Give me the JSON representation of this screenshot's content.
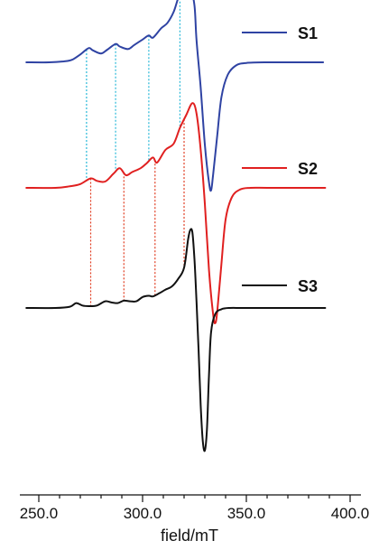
{
  "chart_data": {
    "type": "line",
    "title": "",
    "xlabel": "field/mT",
    "ylabel": "",
    "xlim": [
      240,
      400
    ],
    "x_ticks": [
      250,
      300,
      350,
      400
    ],
    "x_tick_labels": [
      "250.0",
      "300.0",
      "350.0",
      "400.0"
    ],
    "grid": false,
    "legend": "right, next to each trace",
    "series": [
      {
        "name": "S1",
        "color": "#2f43a3",
        "x": [
          244,
          255,
          262,
          266,
          270,
          274,
          276,
          280,
          283,
          287,
          289,
          293,
          296,
          300,
          303,
          305,
          309,
          312,
          315,
          317,
          319,
          321,
          323,
          325,
          326,
          328,
          330,
          332,
          333,
          334,
          336,
          338,
          341,
          345,
          350,
          360,
          375,
          387
        ],
        "y": [
          0.0,
          0.0,
          0.03,
          0.08,
          0.25,
          0.45,
          0.38,
          0.28,
          0.4,
          0.58,
          0.5,
          0.42,
          0.55,
          0.72,
          0.85,
          0.78,
          1.08,
          1.25,
          1.6,
          2.0,
          2.3,
          2.45,
          2.38,
          1.8,
          0.7,
          -0.8,
          -2.6,
          -3.8,
          -4.05,
          -3.55,
          -2.3,
          -1.1,
          -0.4,
          -0.1,
          -0.02,
          0.0,
          0.0,
          0.0
        ]
      },
      {
        "name": "S2",
        "color": "#e02020",
        "x": [
          244,
          258,
          265,
          270,
          275,
          278,
          282,
          286,
          289,
          292,
          295,
          299,
          302,
          305,
          307,
          311,
          315,
          318,
          321,
          324,
          326,
          328,
          330,
          332,
          334,
          335,
          336,
          338,
          340,
          343,
          347,
          352,
          360,
          375,
          388
        ],
        "y": [
          0.0,
          0.0,
          0.05,
          0.12,
          0.3,
          0.22,
          0.2,
          0.45,
          0.62,
          0.4,
          0.5,
          0.62,
          0.78,
          0.96,
          0.8,
          1.2,
          1.4,
          1.9,
          2.3,
          2.68,
          2.35,
          1.2,
          -0.5,
          -2.6,
          -4.0,
          -4.28,
          -3.9,
          -2.4,
          -1.0,
          -0.3,
          -0.05,
          0.0,
          0.0,
          0.0,
          0.0
        ]
      },
      {
        "name": "S3",
        "color": "#111111",
        "x": [
          244,
          258,
          265,
          268,
          271,
          274,
          278,
          282,
          285,
          288,
          291,
          294,
          297,
          300,
          303,
          305,
          308,
          311,
          314,
          317,
          320,
          322,
          323,
          324,
          325,
          326,
          327,
          328,
          329,
          330,
          331,
          332,
          333,
          335,
          338,
          342,
          348,
          360,
          375,
          388
        ],
        "y": [
          0.0,
          0.0,
          0.1,
          0.4,
          0.2,
          0.15,
          0.2,
          0.55,
          0.45,
          0.4,
          0.6,
          0.55,
          0.55,
          0.9,
          1.0,
          0.95,
          1.2,
          1.5,
          1.75,
          2.35,
          3.3,
          5.7,
          6.4,
          6.2,
          4.0,
          0.5,
          -3.5,
          -8.0,
          -10.9,
          -11.7,
          -10.0,
          -5.5,
          -2.0,
          -0.5,
          -0.1,
          0.0,
          0.0,
          0.0,
          0.0,
          0.0
        ]
      }
    ],
    "guides": [
      {
        "from": "S1",
        "to": "S2",
        "color": "#29b8d8",
        "x": [
          273,
          287,
          303,
          318
        ]
      },
      {
        "from": "S2",
        "to": "S3",
        "color": "#e03a1e",
        "x": [
          275,
          291,
          306,
          320
        ]
      }
    ]
  }
}
